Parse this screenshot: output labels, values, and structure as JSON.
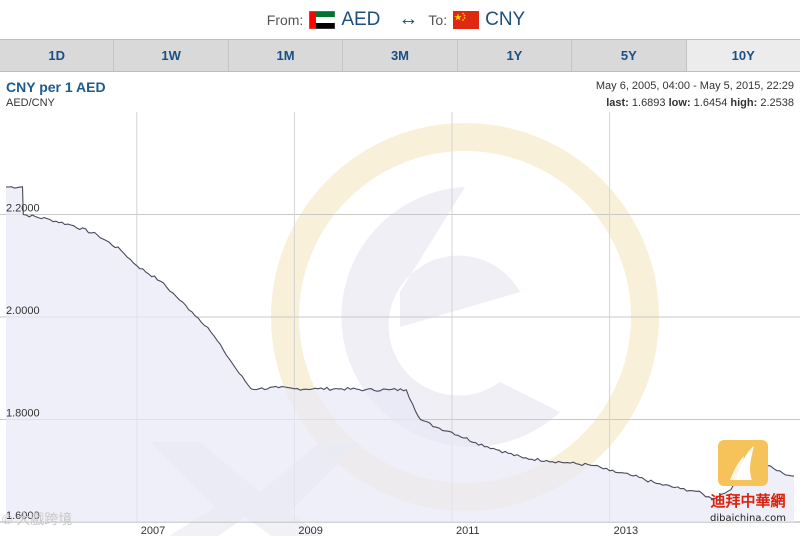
{
  "header": {
    "from_label": "From:",
    "from_currency": "AED",
    "swap_symbol": "↔",
    "to_label": "To:",
    "to_currency": "CNY"
  },
  "tabs": [
    {
      "label": "1D",
      "active": false
    },
    {
      "label": "1W",
      "active": false
    },
    {
      "label": "1M",
      "active": false
    },
    {
      "label": "3M",
      "active": false
    },
    {
      "label": "1Y",
      "active": false
    },
    {
      "label": "5Y",
      "active": false
    },
    {
      "label": "10Y",
      "active": true
    }
  ],
  "chart_info": {
    "title": "CNY per 1 AED",
    "pair": "AED/CNY",
    "range": "May 6, 2005, 04:00 - May 5, 2015, 22:29",
    "last_label": "last:",
    "last_value": "1.6893",
    "low_label": "low:",
    "low_value": "1.6454",
    "high_label": "high:",
    "high_value": "2.2538"
  },
  "watermark": {
    "text": "© 大戲跨境",
    "logo_text": "迪拜中華網",
    "logo_url_text": "dibaichina.com"
  },
  "colors": {
    "line": "#4a4a5a",
    "area_fill": "#e8e8f6",
    "tab_text": "#1a4f85",
    "title": "#1c5b8e",
    "watermark_ring": "#f3e4b8",
    "watermark_e": "#ebebf2"
  },
  "chart_data": {
    "type": "area",
    "title": "CNY per 1 AED",
    "xlabel": "",
    "ylabel": "",
    "ylim": [
      1.6,
      2.4
    ],
    "xlim": [
      2005.34,
      2015.34
    ],
    "x_ticks": [
      2007,
      2009,
      2011,
      2013
    ],
    "x_tick_labels": [
      "2007",
      "2009",
      "2011",
      "2013"
    ],
    "y_ticks": [
      1.6,
      1.8,
      2.0,
      2.2
    ],
    "y_tick_labels": [
      "1.6000",
      "1.8000",
      "2.0000",
      "2.2000"
    ],
    "grid": true,
    "series": [
      {
        "x": [
          2005.34,
          2005.55,
          2005.56,
          2005.9,
          2006.2,
          2006.5,
          2006.8,
          2007.0,
          2007.3,
          2007.5,
          2007.7,
          2007.9,
          2008.1,
          2008.3,
          2008.45,
          2008.55,
          2008.8,
          2009.0,
          2009.3,
          2009.6,
          2009.9,
          2010.2,
          2010.42,
          2010.5,
          2010.6,
          2010.8,
          2011.0,
          2011.3,
          2011.6,
          2011.9,
          2012.2,
          2012.5,
          2012.8,
          2013.0,
          2013.3,
          2013.6,
          2013.9,
          2014.1,
          2014.3,
          2014.5,
          2014.7,
          2014.85,
          2015.0,
          2015.2,
          2015.34
        ],
        "values": [
          2.2538,
          2.2538,
          2.2,
          2.19,
          2.178,
          2.16,
          2.13,
          2.1,
          2.07,
          2.04,
          2.01,
          1.98,
          1.935,
          1.89,
          1.86,
          1.86,
          1.862,
          1.86,
          1.86,
          1.86,
          1.858,
          1.858,
          1.858,
          1.83,
          1.8,
          1.785,
          1.775,
          1.755,
          1.74,
          1.725,
          1.72,
          1.715,
          1.71,
          1.7,
          1.69,
          1.675,
          1.665,
          1.66,
          1.6454,
          1.66,
          1.69,
          1.71,
          1.71,
          1.695,
          1.6893
        ]
      }
    ]
  }
}
